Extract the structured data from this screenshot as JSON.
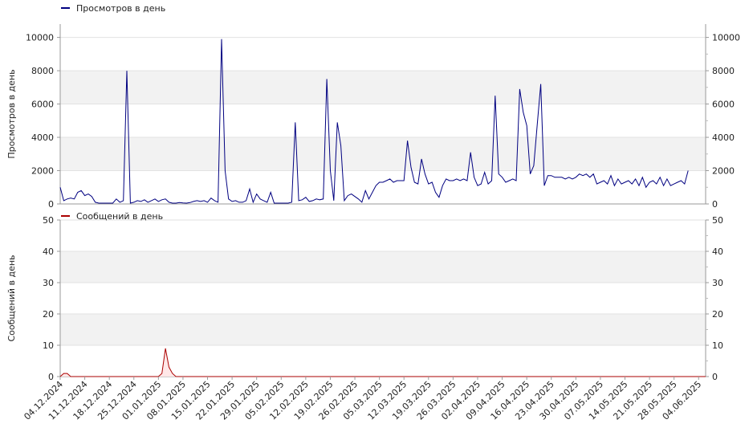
{
  "chart_data": [
    {
      "type": "line",
      "legend": "Просмотров в день",
      "legend_position": "top-left",
      "ylabel": "Просмотров в день",
      "ylim": [
        0,
        10800
      ],
      "yticks": [
        "0",
        "2000",
        "4000",
        "6000",
        "8000",
        "10000"
      ],
      "ytick_values": [
        0,
        2000,
        4000,
        6000,
        8000,
        10000
      ],
      "grid": true,
      "color": "#000080",
      "x_start": "04.12.2024",
      "x_end": "06.06.2025",
      "values": [
        1000,
        200,
        300,
        350,
        300,
        700,
        800,
        500,
        600,
        450,
        100,
        50,
        50,
        50,
        50,
        50,
        300,
        100,
        200,
        8000,
        50,
        100,
        200,
        150,
        250,
        100,
        200,
        300,
        150,
        250,
        300,
        100,
        50,
        50,
        80,
        60,
        50,
        80,
        150,
        200,
        150,
        200,
        100,
        350,
        200,
        100,
        9900,
        2000,
        300,
        150,
        200,
        100,
        100,
        200,
        900,
        100,
        600,
        300,
        200,
        100,
        700,
        50,
        50,
        50,
        50,
        50,
        100,
        4900,
        200,
        250,
        400,
        150,
        200,
        300,
        250,
        300,
        7500,
        2000,
        200,
        4900,
        3500,
        200,
        500,
        600,
        450,
        300,
        100,
        800,
        300,
        700,
        1100,
        1300,
        1300,
        1400,
        1500,
        1300,
        1400,
        1400,
        1400,
        3800,
        2200,
        1300,
        1200,
        2700,
        1800,
        1200,
        1300,
        700,
        400,
        1100,
        1500,
        1400,
        1400,
        1500,
        1400,
        1500,
        1400,
        3100,
        1600,
        1100,
        1200,
        1900,
        1200,
        1400,
        6500,
        1800,
        1600,
        1300,
        1400,
        1500,
        1400,
        6900,
        5500,
        4700,
        1800,
        2300,
        4800,
        7200,
        1100,
        1700,
        1700,
        1600,
        1600,
        1600,
        1500,
        1600,
        1500,
        1600,
        1800,
        1700,
        1800,
        1600,
        1800,
        1200,
        1300,
        1400,
        1200,
        1700,
        1100,
        1500,
        1200,
        1300,
        1400,
        1200,
        1500,
        1100,
        1600,
        1000,
        1300,
        1400,
        1200,
        1600,
        1100,
        1500,
        1100,
        1200,
        1300,
        1400,
        1200,
        2000
      ]
    },
    {
      "type": "area",
      "legend": "Сообщений в день",
      "legend_position": "top-left",
      "ylabel": "Сообщений в день",
      "ylim": [
        0,
        50
      ],
      "yticks": [
        "0",
        "10",
        "20",
        "30",
        "40",
        "50"
      ],
      "ytick_values": [
        0,
        10,
        20,
        30,
        40,
        50
      ],
      "grid": true,
      "color": "#aa0000",
      "x_start": "04.12.2024",
      "x_end": "06.06.2025",
      "points": [
        [
          0,
          0
        ],
        [
          1,
          1
        ],
        [
          2,
          1
        ],
        [
          3,
          0
        ],
        [
          28,
          0
        ],
        [
          29,
          1
        ],
        [
          30,
          9
        ],
        [
          31,
          3
        ],
        [
          32,
          1
        ],
        [
          33,
          0
        ],
        [
          184,
          0
        ]
      ]
    }
  ],
  "x_axis": {
    "ticks": [
      "04.12.2024",
      "11.12.2024",
      "18.12.2024",
      "25.12.2024",
      "01.01.2025",
      "08.01.2025",
      "15.01.2025",
      "22.01.2025",
      "29.01.2025",
      "05.02.2025",
      "12.02.2025",
      "19.02.2025",
      "26.02.2025",
      "05.03.2025",
      "12.03.2025",
      "19.03.2025",
      "26.03.2025",
      "02.04.2025",
      "09.04.2025",
      "16.04.2025",
      "23.04.2025",
      "30.04.2025",
      "07.05.2025",
      "14.05.2025",
      "21.05.2025",
      "28.05.2025",
      "04.06.2025"
    ],
    "tick_days": [
      0,
      7,
      14,
      21,
      28,
      35,
      42,
      49,
      56,
      63,
      70,
      77,
      84,
      91,
      98,
      105,
      112,
      119,
      126,
      133,
      140,
      147,
      154,
      161,
      168,
      175,
      182
    ],
    "total_days": 184
  }
}
